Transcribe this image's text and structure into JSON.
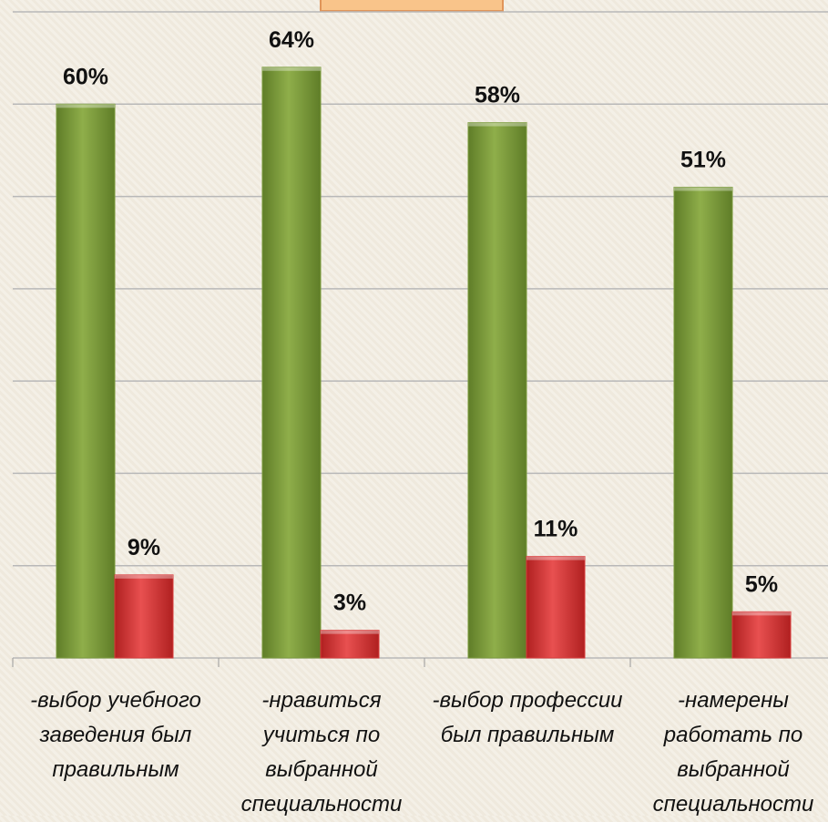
{
  "chart_data": {
    "type": "bar",
    "categories": [
      "-выбор учебного заведения был правильным",
      "-нравиться учиться по выбранной специальности",
      "-выбор профессии был правильным",
      "-намерены работать по выбранной специальности"
    ],
    "series": [
      {
        "color": "#7a9a3a",
        "values": [
          60,
          64,
          58,
          51
        ],
        "value_labels": [
          "60%",
          "64%",
          "58%",
          "51%"
        ]
      },
      {
        "color": "#d83a3a",
        "values": [
          9,
          3,
          11,
          5
        ],
        "value_labels": [
          "9%",
          "3%",
          "11%",
          "5%"
        ]
      }
    ],
    "ylim": [
      0,
      70
    ],
    "yticks": [
      0,
      10,
      20,
      30,
      40,
      50,
      60,
      70
    ],
    "grid": true
  }
}
